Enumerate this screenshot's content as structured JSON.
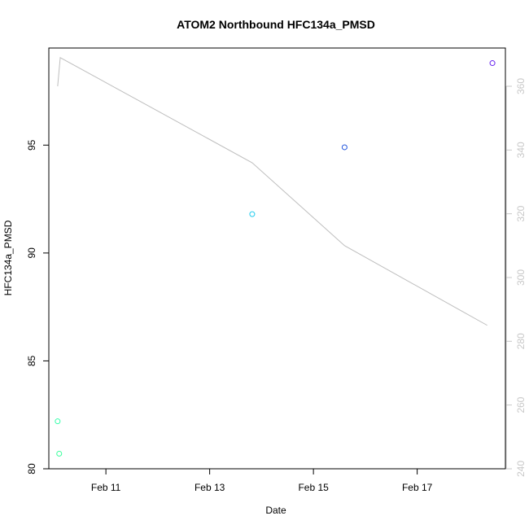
{
  "chart_data": {
    "type": "scatter",
    "title": "ATOM2 Northbound HFC134a_PMSD",
    "xlabel": "Date",
    "ylabel": "HFC134a_PMSD",
    "x_ticks": [
      "Feb 11",
      "Feb 13",
      "Feb 15",
      "Feb 17"
    ],
    "x_tick_values": [
      11,
      13,
      15,
      17
    ],
    "xlim": [
      9.9,
      18.7
    ],
    "ylim": [
      80,
      99.5
    ],
    "y_ticks": [
      80,
      85,
      90,
      95
    ],
    "points": [
      {
        "x": 10.07,
        "y": 82.2,
        "color": "#33ffaa"
      },
      {
        "x": 10.1,
        "y": 80.7,
        "color": "#33ff99"
      },
      {
        "x": 13.82,
        "y": 91.8,
        "color": "#22ccee"
      },
      {
        "x": 15.6,
        "y": 94.9,
        "color": "#2255dd"
      },
      {
        "x": 18.45,
        "y": 98.8,
        "color": "#6622ee"
      }
    ],
    "secondary_axis": {
      "ylim": [
        240,
        372
      ],
      "y_ticks": [
        240,
        260,
        280,
        300,
        320,
        340,
        360
      ],
      "tick_color": "#c8c8c8",
      "line_color": "#bebebe",
      "line": {
        "x": [
          10.07,
          10.12,
          13.82,
          15.6,
          18.35
        ],
        "y": [
          360,
          369,
          336,
          310,
          285
        ]
      }
    },
    "grid": false,
    "legend": "none"
  }
}
